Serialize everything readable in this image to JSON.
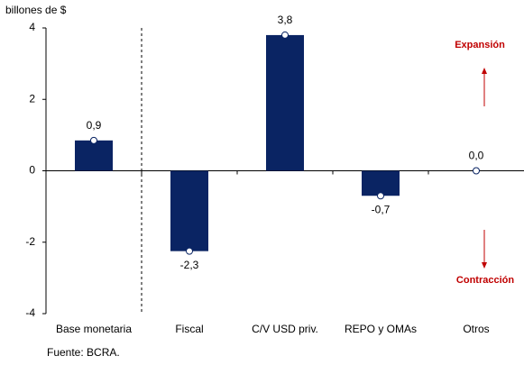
{
  "chart_data": {
    "type": "bar",
    "y_label": "billones de $",
    "categories": [
      "Base monetaria",
      "Fiscal",
      "C/V USD priv.",
      "REPO y OMAs",
      "Otros"
    ],
    "values": [
      0.85,
      -2.25,
      3.8,
      -0.7,
      0.0
    ],
    "value_labels": [
      "0,9",
      "-2,3",
      "3,8",
      "-0,7",
      "0,0"
    ],
    "color": "#0a2463",
    "ylim": [
      -4,
      4
    ],
    "yticks": [
      4,
      2,
      0,
      -2,
      -4
    ],
    "annotations": [
      "Expansión",
      "Contracción"
    ],
    "source": "Fuente: BCRA."
  }
}
